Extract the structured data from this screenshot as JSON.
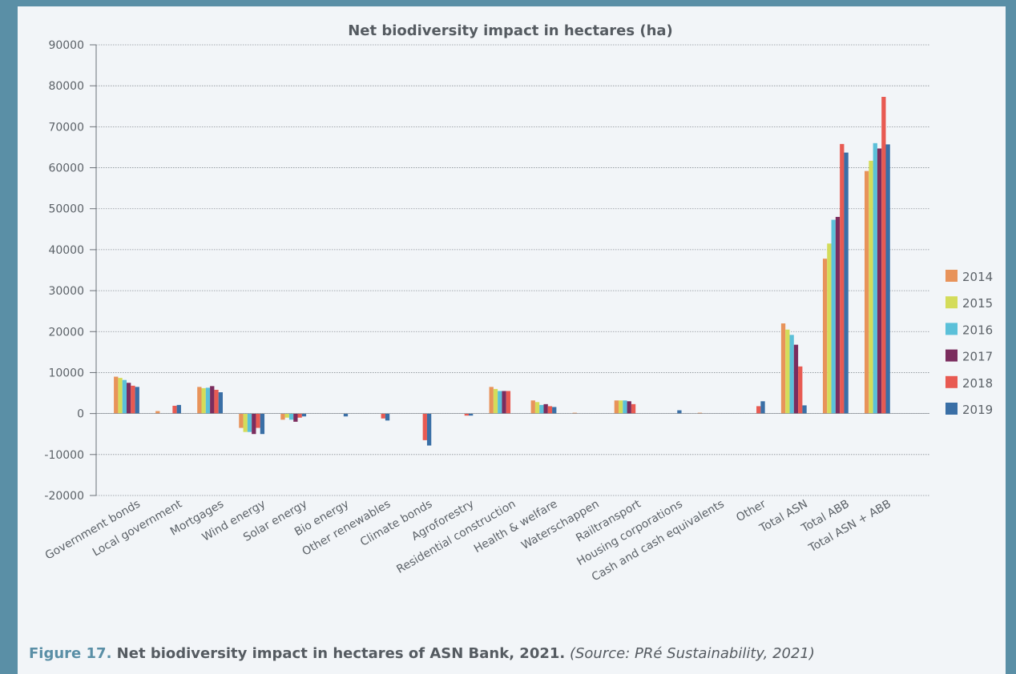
{
  "chart_data": {
    "type": "bar",
    "title": "Net biodiversity impact in hectares (ha)",
    "ylim": [
      -20000,
      90000
    ],
    "yticks": [
      90000,
      80000,
      70000,
      60000,
      50000,
      40000,
      30000,
      20000,
      10000,
      0,
      -10000,
      -20000
    ],
    "ytick_labels": [
      "90000",
      "80000",
      "70000",
      "60000",
      "50000",
      "40000",
      "30000",
      "20000",
      "10000",
      "0",
      "-10000",
      "-20000"
    ],
    "grid": true,
    "legend_position": "right",
    "categories": [
      "Government bonds",
      "Local government",
      "Mortgages",
      "Wind energy",
      "Solar energy",
      "Bio energy",
      "Other renewables",
      "Climate bonds",
      "Agroforestry",
      "Residential construction",
      "Health & welfare",
      "Waterschappen",
      "Railtransport",
      "Housing corporations",
      "Cash and cash equivalents",
      "Other",
      "Total ASN",
      "Total ABB",
      "Total ASN + ABB"
    ],
    "series": [
      {
        "name": "2014",
        "color": "#e8935a",
        "values": [
          9000,
          600,
          6500,
          -3500,
          -1500,
          0,
          0,
          0,
          0,
          6500,
          3200,
          200,
          3200,
          0,
          200,
          0,
          22000,
          37800,
          59200
        ]
      },
      {
        "name": "2015",
        "color": "#d4dc5a",
        "values": [
          8700,
          0,
          6200,
          -4500,
          -1000,
          0,
          0,
          0,
          0,
          6000,
          2800,
          0,
          3200,
          0,
          0,
          0,
          20500,
          41500,
          61700
        ]
      },
      {
        "name": "2016",
        "color": "#5bc0d9",
        "values": [
          8200,
          0,
          6300,
          -4500,
          -1500,
          0,
          0,
          0,
          0,
          5500,
          2100,
          0,
          3200,
          0,
          0,
          0,
          19200,
          47300,
          66000
        ]
      },
      {
        "name": "2017",
        "color": "#7b2d5e",
        "values": [
          7500,
          0,
          6700,
          -5000,
          -2000,
          0,
          0,
          0,
          0,
          5500,
          2300,
          0,
          3000,
          0,
          0,
          0,
          16800,
          48000,
          64700
        ]
      },
      {
        "name": "2018",
        "color": "#e85a52",
        "values": [
          6800,
          1900,
          5800,
          -3500,
          -1000,
          0,
          -1200,
          -6500,
          -500,
          5500,
          1800,
          0,
          2300,
          0,
          0,
          1800,
          11500,
          65800,
          77300
        ]
      },
      {
        "name": "2019",
        "color": "#3a6fa6",
        "values": [
          6500,
          2100,
          5200,
          -5000,
          -700,
          -700,
          -1700,
          -7800,
          -500,
          0,
          1600,
          0,
          0,
          800,
          0,
          3000,
          2000,
          63700,
          65700
        ]
      }
    ]
  },
  "caption": {
    "figure": "Figure 17.",
    "main": " Net biodiversity impact in hectares of ASN Bank, 2021.",
    "source": " (Source: PRé Sustainability, 2021)"
  }
}
